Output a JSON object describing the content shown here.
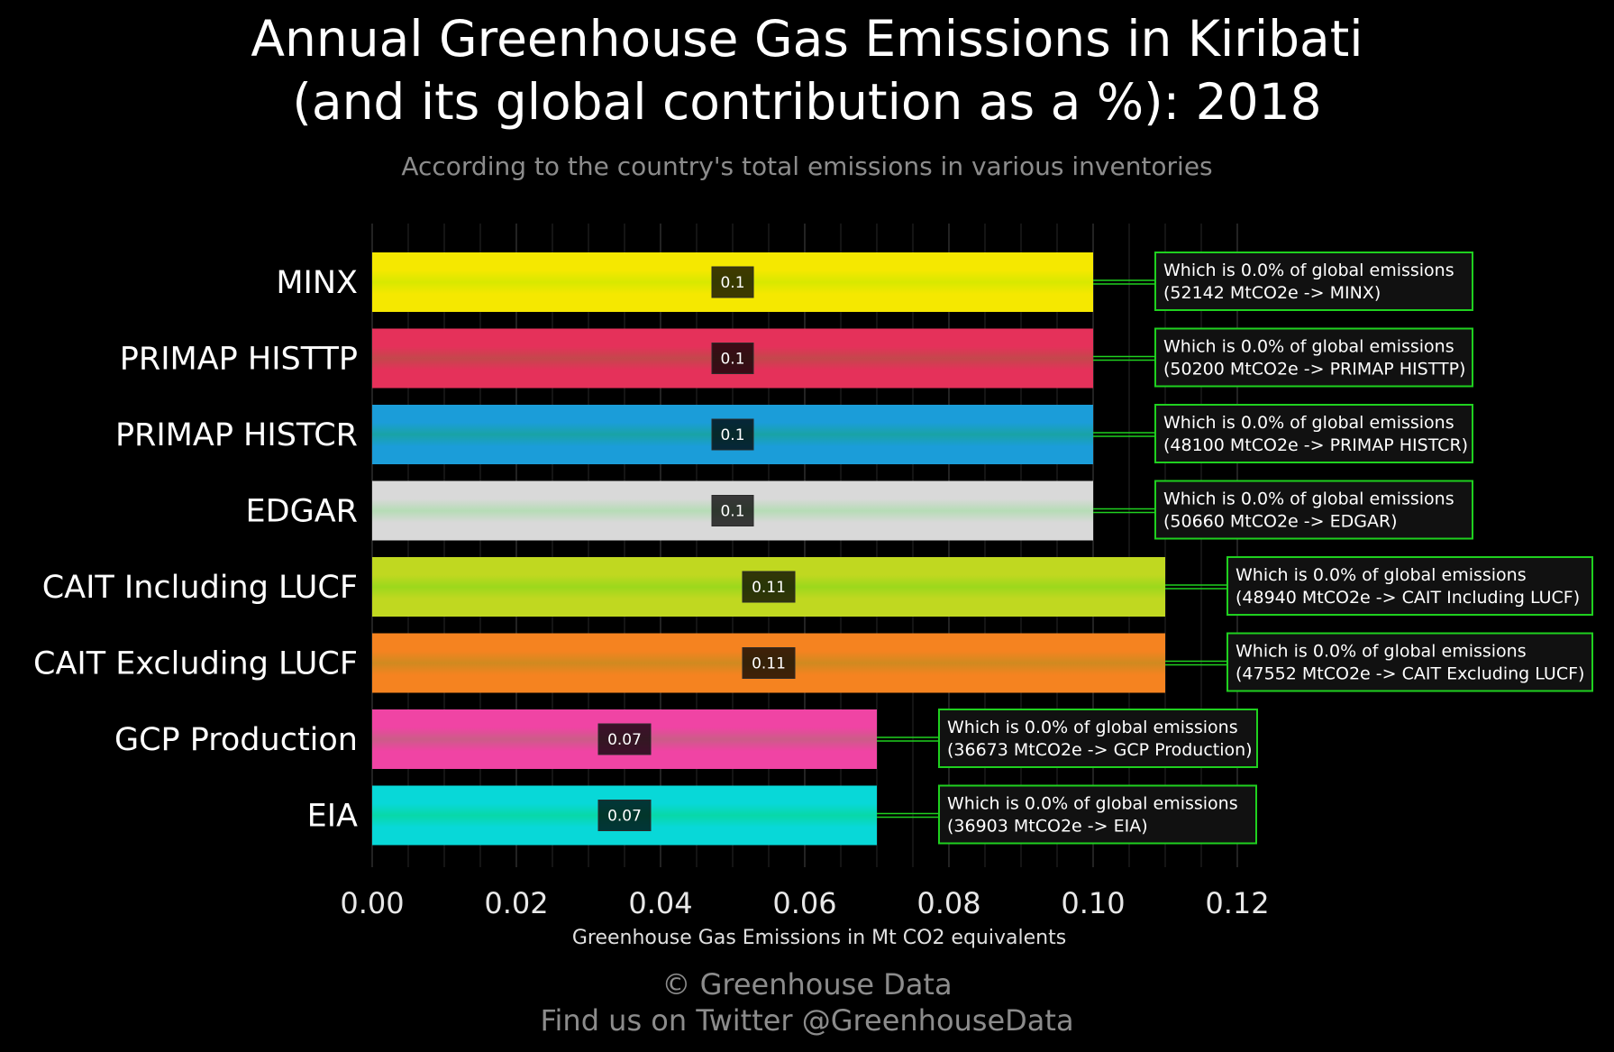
{
  "title_line1": "Annual Greenhouse Gas Emissions in Kiribati",
  "title_line2": "(and its global contribution as a %): 2018",
  "subtitle": "According to the country's total emissions in various inventories",
  "footer_line1": "© Greenhouse Data",
  "footer_line2": "Find us on Twitter @GreenhouseData",
  "chart_data": {
    "type": "bar",
    "orientation": "horizontal",
    "xlabel": "Greenhouse Gas Emissions in Mt CO2 equivalents",
    "xlim": [
      0,
      0.124
    ],
    "xticks": [
      0,
      0.02,
      0.04,
      0.06,
      0.08,
      0.1,
      0.12
    ],
    "xtick_labels": [
      "0.00",
      "0.02",
      "0.04",
      "0.06",
      "0.08",
      "0.10",
      "0.12"
    ],
    "grid": true,
    "bars": [
      {
        "category": "MINX",
        "value": 0.1,
        "label": "0.1",
        "color": "#f5e800",
        "center_color": "#d8e800",
        "annotation_line1": "Which is 0.0% of global emissions",
        "annotation_line2": "(52142 MtCO2e -> MINX)"
      },
      {
        "category": "PRIMAP HISTTP",
        "value": 0.1,
        "label": "0.1",
        "color": "#e5315a",
        "center_color": "#c4474c",
        "annotation_line1": "Which is 0.0% of global emissions",
        "annotation_line2": "(50200 MtCO2e -> PRIMAP HISTTP)"
      },
      {
        "category": "PRIMAP HISTCR",
        "value": 0.1,
        "label": "0.1",
        "color": "#1b9dd9",
        "center_color": "#19a3a6",
        "annotation_line1": "Which is 0.0% of global emissions",
        "annotation_line2": "(48100 MtCO2e -> PRIMAP HISTCR)"
      },
      {
        "category": "EDGAR",
        "value": 0.1,
        "label": "0.1",
        "color": "#d9d9d9",
        "center_color": "#b6dcb6",
        "annotation_line1": "Which is 0.0% of global emissions",
        "annotation_line2": "(50660 MtCO2e -> EDGAR)"
      },
      {
        "category": "CAIT Including LUCF",
        "value": 0.11,
        "label": "0.11",
        "color": "#c0d820",
        "center_color": "#9cd81c",
        "annotation_line1": "Which is 0.0% of global emissions",
        "annotation_line2": "(48940 MtCO2e -> CAIT Including LUCF)"
      },
      {
        "category": "CAIT Excluding LUCF",
        "value": 0.11,
        "label": "0.11",
        "color": "#f58320",
        "center_color": "#d08a20",
        "annotation_line1": "Which is 0.0% of global emissions",
        "annotation_line2": "(47552 MtCO2e -> CAIT Excluding LUCF)"
      },
      {
        "category": "GCP Production",
        "value": 0.07,
        "label": "0.07",
        "color": "#f044a4",
        "center_color": "#cc5c88",
        "annotation_line1": "Which is 0.0% of global emissions",
        "annotation_line2": "(36673 MtCO2e -> GCP Production)"
      },
      {
        "category": "EIA",
        "value": 0.07,
        "label": "0.07",
        "color": "#08d8d8",
        "center_color": "#08d8a8",
        "annotation_line1": "Which is 0.0% of global emissions",
        "annotation_line2": "(36903 MtCO2e -> EIA)"
      }
    ],
    "annotation_border_color": "#1fd01f",
    "grid_color": "#3a3a3a",
    "text_color": "#ffffff",
    "muted_text_color": "#8c8c8c"
  }
}
